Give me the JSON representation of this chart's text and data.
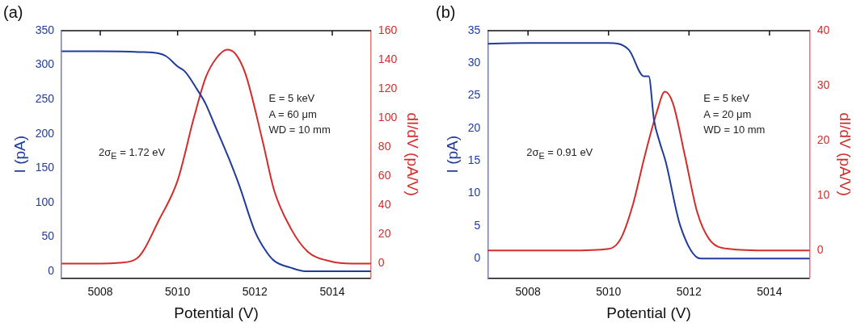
{
  "chart_data": [
    {
      "type": "line",
      "title": "(a)",
      "xlabel": "Potential (V)",
      "ylabel": "I (pA)",
      "y2label": "dI/dV (pA/V)",
      "xlim": [
        5007,
        5015
      ],
      "xticks": [
        5008,
        5010,
        5012,
        5014
      ],
      "ylim": [
        -10,
        350
      ],
      "yticks": [
        0,
        50,
        100,
        150,
        200,
        250,
        300,
        350
      ],
      "y2lim": [
        -10,
        160
      ],
      "y2ticks": [
        0,
        20,
        40,
        60,
        80,
        100,
        120,
        140,
        160
      ],
      "grid": false,
      "legend": false,
      "annotations": [
        "2σ$_{E}$ = 1.72 eV",
        "E = 5 keV",
        "A = 60 μm",
        "WD = 10 mm"
      ],
      "series": [
        {
          "color": "#1f3b9c",
          "x": [
            5007,
            5008,
            5009,
            5009.5,
            5009.7,
            5010,
            5010.2,
            5010.5,
            5010.73,
            5010.95,
            5011.32,
            5011.6,
            5012,
            5012.3,
            5012.5,
            5012.93,
            5013.3,
            5014,
            5015
          ],
          "values": [
            320,
            320,
            319,
            317,
            313,
            298,
            290,
            265,
            243,
            214,
            165,
            124,
            58,
            28,
            15,
            5,
            0,
            0,
            0
          ]
        },
        {
          "color": "#d42b2b",
          "axis": "y2",
          "x": [
            5007,
            5008,
            5008.5,
            5008.95,
            5009.54,
            5010,
            5010.43,
            5010.73,
            5011,
            5011.28,
            5011.5,
            5011.76,
            5012.2,
            5012.5,
            5012.93,
            5013.37,
            5013.96,
            5014.5,
            5015
          ],
          "values": [
            0,
            0,
            0.5,
            3.5,
            31,
            57,
            101,
            128,
            141,
            147,
            144,
            130,
            84,
            50,
            24,
            8,
            1.5,
            0,
            0
          ]
        }
      ]
    },
    {
      "type": "line",
      "title": "(b)",
      "xlabel": "Potential (V)",
      "ylabel": "I (pA)",
      "y2label": "dI/dV (pA/V)",
      "xlim": [
        5007,
        5015
      ],
      "xticks": [
        5008,
        5010,
        5012,
        5014
      ],
      "ylim": [
        -3,
        35
      ],
      "yticks": [
        0,
        5,
        10,
        15,
        20,
        25,
        30,
        35
      ],
      "y2lim": [
        -5,
        40
      ],
      "y2ticks": [
        0,
        10,
        20,
        30,
        40
      ],
      "grid": false,
      "legend": false,
      "annotations": [
        "2σ$_{E}$ = 0.91 eV",
        "E = 5 keV",
        "A = 20 μm",
        "WD = 10 mm"
      ],
      "series": [
        {
          "color": "#1f3b9c",
          "x": [
            5007,
            5008,
            5009,
            5010,
            5010.5,
            5010.88,
            5011,
            5011.13,
            5011.27,
            5011.42,
            5011.78,
            5012.29,
            5013,
            5014,
            5015
          ],
          "values": [
            33,
            33.1,
            33.1,
            33.1,
            32.1,
            28,
            28,
            21.3,
            17.9,
            14.9,
            5.1,
            0,
            0,
            0,
            0
          ]
        },
        {
          "color": "#d42b2b",
          "axis": "y2",
          "x": [
            5007,
            5008,
            5009,
            5010,
            5010.3,
            5010.6,
            5010.9,
            5011.2,
            5011.4,
            5011.6,
            5011.9,
            5012.2,
            5012.5,
            5013,
            5014,
            5015
          ],
          "values": [
            0,
            0,
            0,
            0.3,
            2.1,
            8.2,
            17.2,
            25.2,
            28.9,
            26.8,
            17.2,
            7.1,
            2.1,
            0.3,
            0,
            0
          ]
        }
      ]
    }
  ]
}
